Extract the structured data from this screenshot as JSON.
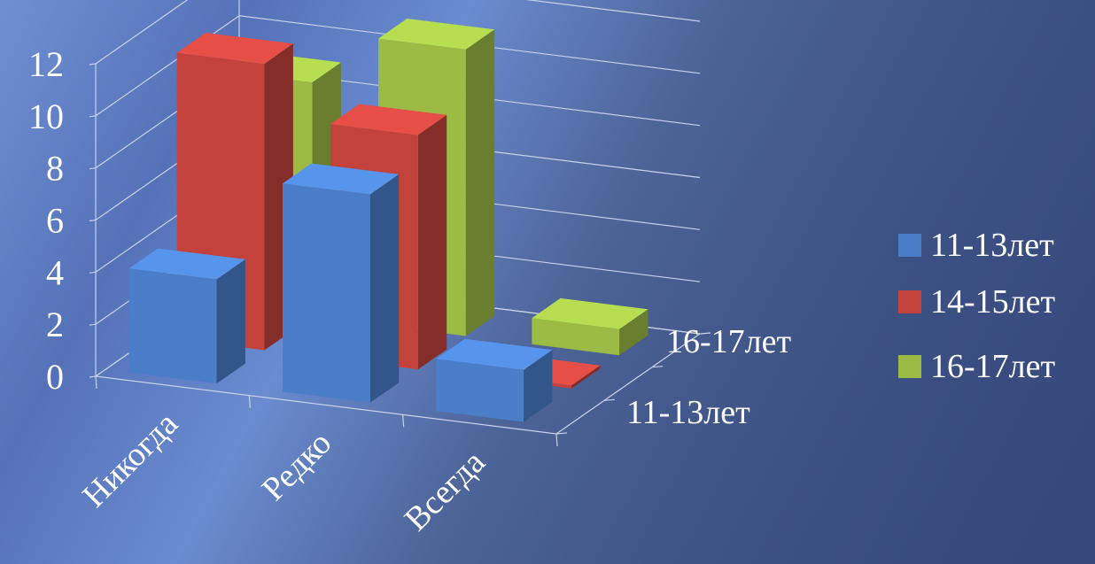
{
  "chart_data": {
    "type": "bar",
    "subtype": "3d-column",
    "categories": [
      "Никогда",
      "Редко",
      "Всегда"
    ],
    "depth_labels": [
      "16-17лет",
      "11-13лет"
    ],
    "series": [
      {
        "name": "11-13лет",
        "values": [
          4,
          8,
          2
        ],
        "color": "#4a7ec9"
      },
      {
        "name": "14-15лет",
        "values": [
          11,
          9,
          0
        ],
        "color": "#c4423c"
      },
      {
        "name": "16-17лет",
        "values": [
          9,
          11,
          1
        ],
        "color": "#9bbb45"
      }
    ],
    "y_ticks": [
      "0",
      "2",
      "4",
      "6",
      "8",
      "10",
      "12"
    ],
    "ylim": [
      0,
      12
    ],
    "grid": true,
    "legend_position": "right"
  }
}
